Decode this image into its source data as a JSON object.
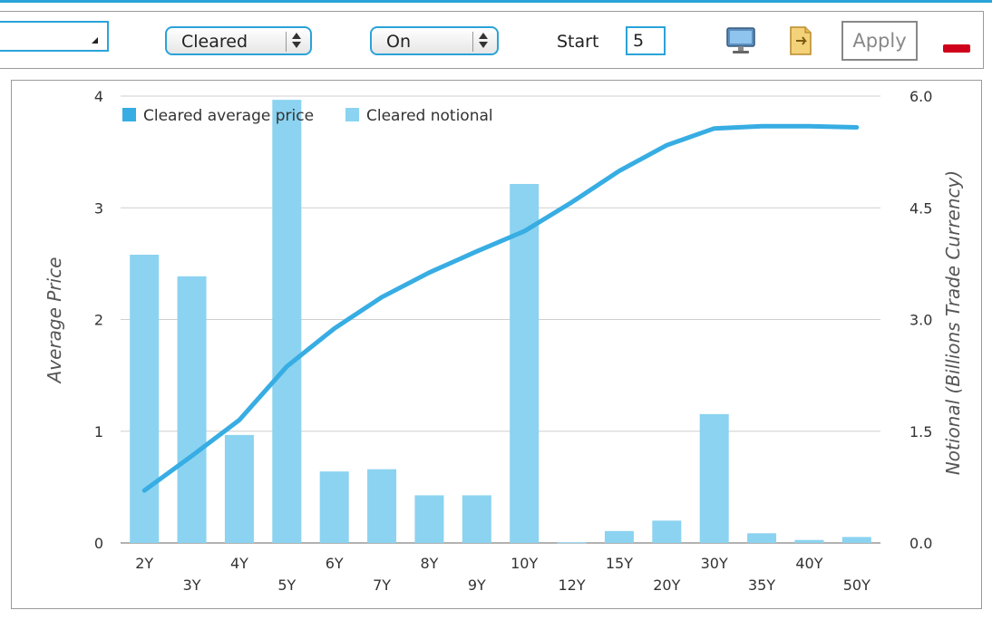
{
  "toolbar": {
    "combo_left_value": "",
    "status_select": "Cleared",
    "toggle_select": "On",
    "start_label": "Start",
    "start_value": "5",
    "apply_label": "Apply",
    "icons": [
      "monitor-icon",
      "export-icon",
      "minus-icon"
    ]
  },
  "colors": {
    "accent": "#2aa3d8",
    "line": "#37ade3",
    "bar": "#8bd3f0",
    "remove": "#d0021b"
  },
  "chart_data": {
    "type": "bar",
    "categories": [
      "2Y",
      "3Y",
      "4Y",
      "5Y",
      "6Y",
      "7Y",
      "8Y",
      "9Y",
      "10Y",
      "12Y",
      "15Y",
      "20Y",
      "30Y",
      "35Y",
      "40Y",
      "50Y"
    ],
    "series": [
      {
        "name": "Cleared average price",
        "type": "line",
        "axis": "left",
        "values": [
          0.47,
          0.78,
          1.1,
          1.58,
          1.92,
          2.2,
          2.42,
          2.61,
          2.79,
          3.05,
          3.33,
          3.56,
          3.71,
          3.73,
          3.73,
          3.72
        ]
      },
      {
        "name": "Cleared notional",
        "type": "bar",
        "axis": "right",
        "values": [
          3.87,
          3.58,
          1.45,
          5.95,
          0.96,
          0.99,
          0.64,
          0.64,
          4.82,
          0.01,
          0.16,
          0.3,
          1.73,
          0.13,
          0.04,
          0.08
        ]
      }
    ],
    "ylabel": "Average Price",
    "y2label": "Notional (Billions Trade Currency)",
    "ylim": [
      0,
      4
    ],
    "y2lim": [
      0,
      6
    ],
    "yticks": [
      "0",
      "1",
      "2",
      "3",
      "4"
    ],
    "y2ticks": [
      "0.0",
      "1.5",
      "3.0",
      "4.5",
      "6.0"
    ],
    "legend": "top-left",
    "grid": true
  }
}
